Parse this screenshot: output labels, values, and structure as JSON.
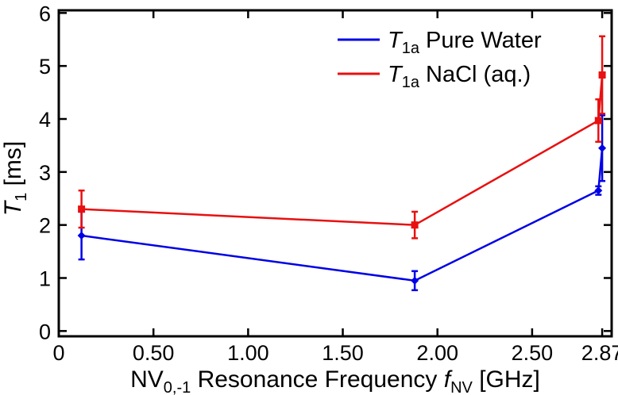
{
  "chart_data": {
    "type": "line",
    "x": [
      0.12,
      1.88,
      2.85,
      2.87
    ],
    "xlim": [
      0,
      2.92
    ],
    "ylim": [
      -0.1,
      6.05
    ],
    "xticks": [
      {
        "value": 0,
        "label": "0"
      },
      {
        "value": 0.5,
        "label": "0.50"
      },
      {
        "value": 1.0,
        "label": "1.00"
      },
      {
        "value": 1.5,
        "label": "1.50"
      },
      {
        "value": 2.0,
        "label": "2.00"
      },
      {
        "value": 2.5,
        "label": "2.50"
      },
      {
        "value": 2.87,
        "label": "2.87"
      }
    ],
    "yticks": [
      {
        "value": 0,
        "label": "0"
      },
      {
        "value": 1,
        "label": "1"
      },
      {
        "value": 2,
        "label": "2"
      },
      {
        "value": 3,
        "label": "3"
      },
      {
        "value": 4,
        "label": "4"
      },
      {
        "value": 5,
        "label": "5"
      },
      {
        "value": 6,
        "label": "6"
      }
    ],
    "xlabel": {
      "pre": "NV",
      "sub": "0,-1",
      "mid": " Resonance Frequency ",
      "sym": "f",
      "sym_sub": "NV",
      "post": " [GHz]"
    },
    "ylabel": {
      "sym": "T",
      "sub": "1",
      "post": " [ms]"
    },
    "series": [
      {
        "name": "T1a Pure Water",
        "legend": {
          "sym": "T",
          "sub": "1a",
          "text": " Pure Water"
        },
        "color": "#0000e6",
        "marker": "diamond",
        "values": [
          1.8,
          0.95,
          2.65,
          3.45
        ],
        "errors": [
          0.45,
          0.18,
          0.08,
          0.62
        ]
      },
      {
        "name": "T1a NaCl (aq.)",
        "legend": {
          "sym": "T",
          "sub": "1a",
          "text": " NaCl (aq.)"
        },
        "color": "#e81010",
        "marker": "square",
        "values": [
          2.3,
          2.0,
          3.97,
          4.83
        ],
        "errors": [
          0.35,
          0.25,
          0.4,
          0.73
        ]
      }
    ],
    "legend_position": "top-right"
  }
}
